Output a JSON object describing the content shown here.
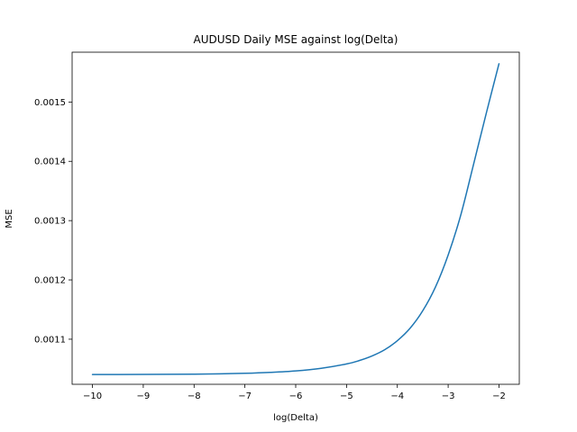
{
  "chart_data": {
    "type": "line",
    "title": "AUDUSD Daily MSE against log(Delta)",
    "xlabel": "log(Delta)",
    "ylabel": "MSE",
    "xlim": [
      -10.4,
      -1.6
    ],
    "ylim": [
      0.001024,
      0.001584
    ],
    "x_ticks": [
      -10,
      -9,
      -8,
      -7,
      -6,
      -5,
      -4,
      -3,
      -2
    ],
    "x_tick_labels": [
      "−10",
      "−9",
      "−8",
      "−7",
      "−6",
      "−5",
      "−4",
      "−3",
      "−2"
    ],
    "y_ticks": [
      0.0011,
      0.0012,
      0.0013,
      0.0014,
      0.0015
    ],
    "y_tick_labels": [
      "0.0011",
      "0.0012",
      "0.0013",
      "0.0014",
      "0.0015"
    ],
    "grid": false,
    "series": [
      {
        "color": "#1f77b4",
        "x": [
          -10.0,
          -9.5,
          -9.0,
          -8.5,
          -8.0,
          -7.5,
          -7.0,
          -6.5,
          -6.0,
          -5.5,
          -5.0,
          -4.75,
          -4.5,
          -4.25,
          -4.0,
          -3.75,
          -3.5,
          -3.25,
          -3.0,
          -2.75,
          -2.5,
          -2.25,
          -2.0
        ],
        "y": [
          0.0010405,
          0.0010405,
          0.0010406,
          0.0010408,
          0.0010411,
          0.0010416,
          0.0010425,
          0.0010441,
          0.0010466,
          0.001051,
          0.0010583,
          0.001064,
          0.0010717,
          0.0010822,
          0.0010975,
          0.0011184,
          0.001148,
          0.001188,
          0.001242,
          0.00131,
          0.001395,
          0.001481,
          0.0015645
        ]
      }
    ]
  }
}
